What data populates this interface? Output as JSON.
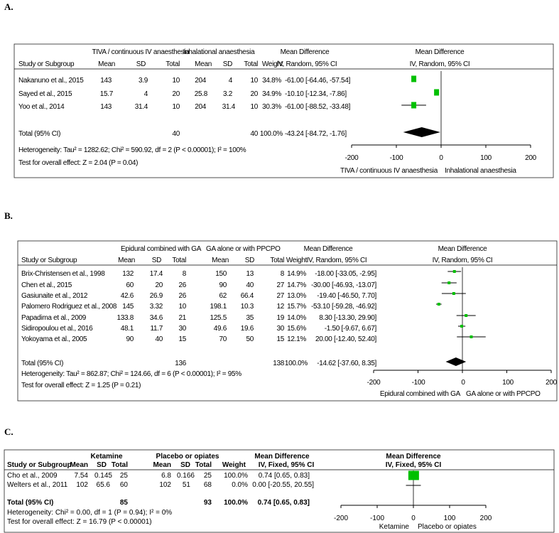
{
  "chart_data": [
    {
      "type": "forest",
      "panel": "A.",
      "experimental_label": "TIVA / continuous IV anaesthesia",
      "control_label": "Inhalational anaesthesia",
      "col_study": "Study or Subgroup",
      "col_mean": "Mean",
      "col_sd": "SD",
      "col_total": "Total",
      "col_weight": "Weight",
      "col_md": "Mean Difference",
      "col_md_method": "IV, Random, 95% CI",
      "studies": [
        {
          "name": "Nakanuno et al., 2015",
          "e_mean": "143",
          "e_sd": "3.9",
          "e_n": "10",
          "c_mean": "204",
          "c_sd": "4",
          "c_n": "10",
          "weight": "34.8%",
          "ci_text": "-61.00 [-64.46, -57.54]",
          "md": -61.0,
          "lo": -64.46,
          "hi": -57.54
        },
        {
          "name": "Sayed et al., 2015",
          "e_mean": "15.7",
          "e_sd": "4",
          "e_n": "20",
          "c_mean": "25.8",
          "c_sd": "3.2",
          "c_n": "20",
          "weight": "34.9%",
          "ci_text": "-10.10 [-12.34, -7.86]",
          "md": -10.1,
          "lo": -12.34,
          "hi": -7.86
        },
        {
          "name": "Yoo et al., 2014",
          "e_mean": "143",
          "e_sd": "31.4",
          "e_n": "10",
          "c_mean": "204",
          "c_sd": "31.4",
          "c_n": "10",
          "weight": "30.3%",
          "ci_text": "-61.00 [-88.52, -33.48]",
          "md": -61.0,
          "lo": -88.52,
          "hi": -33.48
        }
      ],
      "total": {
        "label": "Total (95% CI)",
        "e_n": "40",
        "c_n": "40",
        "weight": "100.0%",
        "ci_text": "-43.24 [-84.72, -1.76]",
        "md": -43.24,
        "lo": -84.72,
        "hi": -1.76
      },
      "heterogeneity": "Heterogeneity: Tau² = 1282.62; Chi² = 590.92, df = 2 (P < 0.00001); I² = 100%",
      "overall_effect": "Test for overall effect: Z = 2.04 (P = 0.04)",
      "axis_ticks": [
        -200,
        -100,
        0,
        100,
        200
      ],
      "axis_tick_labels": [
        "-200",
        "-100",
        "0",
        "100",
        "200"
      ],
      "xlim": [
        -200,
        200
      ],
      "favours_left": "TIVA / continuous IV anaesthesia",
      "favours_right": "Inhalational anaesthesia"
    },
    {
      "type": "forest",
      "panel": "B.",
      "experimental_label": "Epidural combined with GA",
      "control_label": "GA alone or with PPCPO",
      "col_study": "Study or Subgroup",
      "col_mean": "Mean",
      "col_sd": "SD",
      "col_total": "Total",
      "col_weight": "Weight",
      "col_md": "Mean Difference",
      "col_md_method": "IV, Random, 95% CI",
      "studies": [
        {
          "name": "Brix-Christensen et al., 1998",
          "e_mean": "132",
          "e_sd": "17.4",
          "e_n": "8",
          "c_mean": "150",
          "c_sd": "13",
          "c_n": "8",
          "weight": "14.9%",
          "ci_text": "-18.00 [-33.05, -2.95]",
          "md": -18.0,
          "lo": -33.05,
          "hi": -2.95
        },
        {
          "name": "Chen et al., 2015",
          "e_mean": "60",
          "e_sd": "20",
          "e_n": "26",
          "c_mean": "90",
          "c_sd": "40",
          "c_n": "27",
          "weight": "14.7%",
          "ci_text": "-30.00 [-46.93, -13.07]",
          "md": -30.0,
          "lo": -46.93,
          "hi": -13.07
        },
        {
          "name": "Gasiunaite et al., 2012",
          "e_mean": "42.6",
          "e_sd": "26.9",
          "e_n": "26",
          "c_mean": "62",
          "c_sd": "66.4",
          "c_n": "27",
          "weight": "13.0%",
          "ci_text": "-19.40 [-46.50, 7.70]",
          "md": -19.4,
          "lo": -46.5,
          "hi": 7.7
        },
        {
          "name": "Palomero Rodriguez et al., 2008",
          "e_mean": "145",
          "e_sd": "3.32",
          "e_n": "10",
          "c_mean": "198.1",
          "c_sd": "10.3",
          "c_n": "12",
          "weight": "15.7%",
          "ci_text": "-53.10 [-59.28, -46.92]",
          "md": -53.1,
          "lo": -59.28,
          "hi": -46.92
        },
        {
          "name": "Papadima et al., 2009",
          "e_mean": "133.8",
          "e_sd": "34.6",
          "e_n": "21",
          "c_mean": "125.5",
          "c_sd": "35",
          "c_n": "19",
          "weight": "14.0%",
          "ci_text": "8.30 [-13.30, 29.90]",
          "md": 8.3,
          "lo": -13.3,
          "hi": 29.9
        },
        {
          "name": "Sidiropoulou et al., 2016",
          "e_mean": "48.1",
          "e_sd": "11.7",
          "e_n": "30",
          "c_mean": "49.6",
          "c_sd": "19.6",
          "c_n": "30",
          "weight": "15.6%",
          "ci_text": "-1.50 [-9.67, 6.67]",
          "md": -1.5,
          "lo": -9.67,
          "hi": 6.67
        },
        {
          "name": "Yokoyama et al., 2005",
          "e_mean": "90",
          "e_sd": "40",
          "e_n": "15",
          "c_mean": "70",
          "c_sd": "50",
          "c_n": "15",
          "weight": "12.1%",
          "ci_text": "20.00 [-12.40, 52.40]",
          "md": 20.0,
          "lo": -12.4,
          "hi": 52.4
        }
      ],
      "total": {
        "label": "Total (95% CI)",
        "e_n": "136",
        "c_n": "138",
        "weight": "100.0%",
        "ci_text": "-14.62 [-37.60, 8.35]",
        "md": -14.62,
        "lo": -37.6,
        "hi": 8.35
      },
      "heterogeneity": "Heterogeneity: Tau² = 862.87; Chi² = 124.66, df = 6 (P < 0.00001); I² = 95%",
      "overall_effect": "Test for overall effect: Z = 1.25 (P = 0.21)",
      "axis_ticks": [
        -200,
        -100,
        0,
        100,
        200
      ],
      "axis_tick_labels": [
        "-200",
        "-100",
        "0",
        "100",
        "200"
      ],
      "xlim": [
        -200,
        200
      ],
      "favours_left": "Epidural combined with GA",
      "favours_right": "GA alone or with PPCPO"
    },
    {
      "type": "forest",
      "panel": "C.",
      "experimental_label": "Ketamine",
      "control_label": "Placebo or opiates",
      "col_study": "Study or Subgroup",
      "col_mean": "Mean",
      "col_sd": "SD",
      "col_total": "Total",
      "col_weight": "Weight",
      "col_md": "Mean Difference",
      "col_md_method": "IV, Fixed, 95% CI",
      "studies": [
        {
          "name": "Cho et al., 2009",
          "e_mean": "7.54",
          "e_sd": "0.145",
          "e_n": "25",
          "c_mean": "6.8",
          "c_sd": "0.166",
          "c_n": "25",
          "weight": "100.0%",
          "ci_text": "0.74 [0.65, 0.83]",
          "md": 0.74,
          "lo": 0.65,
          "hi": 0.83
        },
        {
          "name": "Welters et al., 2011",
          "e_mean": "102",
          "e_sd": "65.6",
          "e_n": "60",
          "c_mean": "102",
          "c_sd": "51",
          "c_n": "68",
          "weight": "0.0%",
          "ci_text": "0.00 [-20.55, 20.55]",
          "md": 0.0,
          "lo": -20.55,
          "hi": 20.55
        }
      ],
      "total": {
        "label": "Total (95% CI)",
        "e_n": "85",
        "c_n": "93",
        "weight": "100.0%",
        "ci_text": "0.74 [0.65, 0.83]",
        "md": 0.74,
        "lo": 0.65,
        "hi": 0.83
      },
      "heterogeneity": "Heterogeneity: Chi² = 0.00, df = 1 (P = 0.94); I² = 0%",
      "overall_effect": "Test for overall effect: Z = 16.79 (P < 0.00001)",
      "axis_ticks": [
        -200,
        -100,
        0,
        100,
        200
      ],
      "axis_tick_labels": [
        "-200",
        "-100",
        "0",
        "100",
        "200"
      ],
      "xlim": [
        -200,
        200
      ],
      "favours_left": "Ketamine",
      "favours_right": "Placebo or opiates"
    }
  ],
  "colors": {
    "marker": "#00c000",
    "diamond": "#000000",
    "line": "#000000"
  }
}
